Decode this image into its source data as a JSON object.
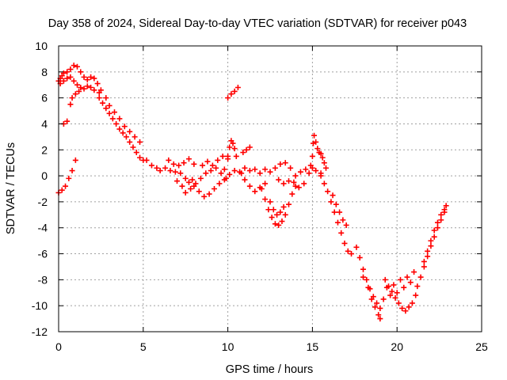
{
  "chart_data": {
    "type": "scatter",
    "title": "Day 358 of 2024, Sidereal Day-to-day VTEC variation (SDTVAR) for receiver p043",
    "xlabel": "GPS time / hours",
    "ylabel": "SDTVAR / TECUs",
    "xlim": [
      0,
      25
    ],
    "ylim": [
      -12,
      10
    ],
    "xticks": [
      "0",
      "5",
      "10",
      "15",
      "20",
      "25"
    ],
    "yticks": [
      "-12",
      "-10",
      "-8",
      "-6",
      "-4",
      "-2",
      "0",
      "2",
      "4",
      "6",
      "8",
      "10"
    ],
    "grid": true,
    "marker": "plus",
    "series_color": "#ff0000",
    "series": [
      {
        "points": [
          [
            0.0,
            -1.3
          ],
          [
            0.2,
            -1.1
          ],
          [
            0.4,
            -0.8
          ],
          [
            0.6,
            -0.2
          ],
          [
            0.8,
            0.4
          ],
          [
            1.0,
            1.2
          ],
          [
            0.3,
            4.0
          ],
          [
            0.5,
            4.2
          ],
          [
            0.7,
            5.5
          ],
          [
            0.8,
            6.0
          ],
          [
            1.0,
            6.3
          ],
          [
            1.2,
            6.5
          ],
          [
            0.0,
            7.3
          ],
          [
            0.1,
            7.5
          ],
          [
            0.2,
            7.7
          ],
          [
            0.3,
            7.9
          ],
          [
            0.5,
            8.0
          ],
          [
            0.7,
            8.2
          ],
          [
            0.9,
            8.5
          ],
          [
            1.1,
            8.4
          ],
          [
            1.3,
            8.0
          ],
          [
            1.5,
            7.6
          ],
          [
            1.7,
            7.4
          ],
          [
            1.9,
            7.6
          ],
          [
            2.1,
            7.5
          ],
          [
            2.3,
            7.1
          ],
          [
            0.1,
            7.1
          ],
          [
            0.3,
            7.3
          ],
          [
            0.5,
            7.5
          ],
          [
            0.7,
            7.6
          ],
          [
            0.9,
            7.3
          ],
          [
            1.1,
            7.0
          ],
          [
            1.3,
            6.8
          ],
          [
            1.5,
            6.7
          ],
          [
            1.7,
            6.9
          ],
          [
            1.9,
            6.8
          ],
          [
            2.1,
            6.6
          ],
          [
            2.4,
            6.4
          ],
          [
            2.4,
            6.0
          ],
          [
            2.6,
            5.6
          ],
          [
            2.8,
            5.2
          ],
          [
            3.0,
            4.8
          ],
          [
            3.2,
            4.4
          ],
          [
            3.4,
            4.0
          ],
          [
            3.6,
            3.6
          ],
          [
            3.8,
            3.3
          ],
          [
            4.0,
            3.0
          ],
          [
            4.2,
            2.6
          ],
          [
            4.4,
            2.2
          ],
          [
            4.6,
            1.8
          ],
          [
            4.8,
            1.4
          ],
          [
            5.0,
            1.2
          ],
          [
            2.5,
            6.6
          ],
          [
            2.8,
            6.0
          ],
          [
            3.0,
            5.4
          ],
          [
            3.3,
            4.9
          ],
          [
            3.6,
            4.4
          ],
          [
            3.9,
            3.8
          ],
          [
            4.2,
            3.4
          ],
          [
            4.5,
            3.0
          ],
          [
            4.8,
            2.6
          ],
          [
            5.2,
            1.2
          ],
          [
            5.5,
            0.8
          ],
          [
            5.8,
            0.6
          ],
          [
            6.0,
            0.4
          ],
          [
            6.3,
            0.6
          ],
          [
            6.6,
            0.4
          ],
          [
            6.9,
            0.3
          ],
          [
            7.2,
            0.2
          ],
          [
            7.5,
            -0.2
          ],
          [
            7.7,
            -0.5
          ],
          [
            7.9,
            -0.3
          ],
          [
            6.5,
            1.2
          ],
          [
            6.8,
            0.9
          ],
          [
            7.1,
            0.8
          ],
          [
            7.4,
            1.0
          ],
          [
            7.7,
            1.3
          ],
          [
            8.0,
            0.9
          ],
          [
            7.0,
            -0.4
          ],
          [
            7.3,
            -0.8
          ],
          [
            7.5,
            -1.3
          ],
          [
            7.8,
            -1.0
          ],
          [
            8.1,
            -0.6
          ],
          [
            8.4,
            -0.2
          ],
          [
            8.7,
            0.2
          ],
          [
            9.0,
            0.4
          ],
          [
            9.3,
            0.6
          ],
          [
            9.6,
            0.2
          ],
          [
            9.9,
            -0.2
          ],
          [
            8.0,
            -0.8
          ],
          [
            8.3,
            -1.2
          ],
          [
            8.6,
            -1.6
          ],
          [
            8.9,
            -1.4
          ],
          [
            9.2,
            -1.0
          ],
          [
            9.5,
            -0.6
          ],
          [
            9.8,
            -0.3
          ],
          [
            10.1,
            0.1
          ],
          [
            10.4,
            0.4
          ],
          [
            10.7,
            0.3
          ],
          [
            8.5,
            0.8
          ],
          [
            8.8,
            1.1
          ],
          [
            9.1,
            0.8
          ],
          [
            9.4,
            1.2
          ],
          [
            9.7,
            1.5
          ],
          [
            10.0,
            1.3
          ],
          [
            9.8,
            0.5
          ],
          [
            10.0,
            1.5
          ],
          [
            10.1,
            2.2
          ],
          [
            10.2,
            2.7
          ],
          [
            10.3,
            2.5
          ],
          [
            10.4,
            2.1
          ],
          [
            10.5,
            1.5
          ],
          [
            10.9,
            1.8
          ],
          [
            11.1,
            2.0
          ],
          [
            11.3,
            2.2
          ],
          [
            10.0,
            6.0
          ],
          [
            10.2,
            6.3
          ],
          [
            10.4,
            6.5
          ],
          [
            10.6,
            6.8
          ],
          [
            10.8,
            0.2
          ],
          [
            11.0,
            -0.3
          ],
          [
            11.3,
            -0.8
          ],
          [
            11.6,
            -1.2
          ],
          [
            11.9,
            -0.9
          ],
          [
            12.2,
            -0.6
          ],
          [
            11.0,
            0.6
          ],
          [
            11.3,
            0.4
          ],
          [
            11.6,
            0.5
          ],
          [
            11.9,
            0.2
          ],
          [
            12.2,
            0.5
          ],
          [
            12.5,
            0.3
          ],
          [
            12.8,
            0.6
          ],
          [
            13.1,
            0.9
          ],
          [
            13.4,
            1.0
          ],
          [
            13.7,
            0.6
          ],
          [
            12.0,
            -1.0
          ],
          [
            12.2,
            -1.8
          ],
          [
            12.4,
            -2.6
          ],
          [
            12.6,
            -3.2
          ],
          [
            12.8,
            -3.7
          ],
          [
            13.0,
            -3.8
          ],
          [
            13.2,
            -3.5
          ],
          [
            13.4,
            -3.0
          ],
          [
            13.6,
            -2.2
          ],
          [
            13.8,
            -1.4
          ],
          [
            14.0,
            -0.8
          ],
          [
            12.5,
            -2.0
          ],
          [
            12.7,
            -2.6
          ],
          [
            12.9,
            -3.0
          ],
          [
            13.1,
            -2.8
          ],
          [
            13.3,
            -2.4
          ],
          [
            13.0,
            -0.3
          ],
          [
            13.3,
            -0.6
          ],
          [
            13.6,
            -0.4
          ],
          [
            13.9,
            -0.5
          ],
          [
            14.2,
            -0.9
          ],
          [
            14.5,
            -0.6
          ],
          [
            14.8,
            0.2
          ],
          [
            15.0,
            0.6
          ],
          [
            14.0,
            0.0
          ],
          [
            14.3,
            0.3
          ],
          [
            14.6,
            0.5
          ],
          [
            14.9,
            0.8
          ],
          [
            15.2,
            0.4
          ],
          [
            15.5,
            0.2
          ],
          [
            15.0,
            1.5
          ],
          [
            15.05,
            2.5
          ],
          [
            15.1,
            3.1
          ],
          [
            15.2,
            2.6
          ],
          [
            15.3,
            2.1
          ],
          [
            15.4,
            1.8
          ],
          [
            15.5,
            1.7
          ],
          [
            15.6,
            1.4
          ],
          [
            15.7,
            1.0
          ],
          [
            15.8,
            0.6
          ],
          [
            15.5,
            0.0
          ],
          [
            15.7,
            -0.6
          ],
          [
            15.9,
            -1.2
          ],
          [
            16.1,
            -2.0
          ],
          [
            16.3,
            -2.8
          ],
          [
            16.5,
            -3.6
          ],
          [
            16.7,
            -4.4
          ],
          [
            16.9,
            -5.2
          ],
          [
            17.1,
            -5.8
          ],
          [
            17.3,
            -6.0
          ],
          [
            16.2,
            -1.5
          ],
          [
            16.4,
            -2.2
          ],
          [
            16.6,
            -2.8
          ],
          [
            16.8,
            -3.4
          ],
          [
            17.0,
            -3.8
          ],
          [
            17.6,
            -5.5
          ],
          [
            17.8,
            -6.3
          ],
          [
            18.0,
            -7.2
          ],
          [
            18.2,
            -8.0
          ],
          [
            18.4,
            -8.7
          ],
          [
            18.6,
            -9.3
          ],
          [
            18.8,
            -9.8
          ],
          [
            19.0,
            -10.2
          ],
          [
            18.0,
            -7.8
          ],
          [
            18.3,
            -8.6
          ],
          [
            18.5,
            -9.5
          ],
          [
            18.7,
            -10.1
          ],
          [
            18.9,
            -10.7
          ],
          [
            19.0,
            -11.0
          ],
          [
            19.2,
            -9.5
          ],
          [
            19.4,
            -8.6
          ],
          [
            19.6,
            -9.2
          ],
          [
            19.8,
            -8.4
          ],
          [
            20.0,
            -9.0
          ],
          [
            20.2,
            -8.0
          ],
          [
            20.4,
            -8.6
          ],
          [
            20.6,
            -7.8
          ],
          [
            20.8,
            -8.2
          ],
          [
            21.0,
            -7.4
          ],
          [
            19.3,
            -8.0
          ],
          [
            19.5,
            -8.5
          ],
          [
            19.7,
            -8.9
          ],
          [
            19.9,
            -9.4
          ],
          [
            20.1,
            -9.8
          ],
          [
            20.3,
            -10.2
          ],
          [
            20.5,
            -10.4
          ],
          [
            20.7,
            -10.1
          ],
          [
            20.9,
            -9.8
          ],
          [
            21.1,
            -9.2
          ],
          [
            21.2,
            -8.5
          ],
          [
            21.4,
            -7.8
          ],
          [
            21.6,
            -7.0
          ],
          [
            21.8,
            -6.2
          ],
          [
            22.0,
            -5.4
          ],
          [
            22.2,
            -4.7
          ],
          [
            22.4,
            -4.0
          ],
          [
            22.6,
            -3.4
          ],
          [
            22.8,
            -2.8
          ],
          [
            22.9,
            -2.3
          ],
          [
            21.6,
            -6.6
          ],
          [
            21.8,
            -5.8
          ],
          [
            22.0,
            -5.0
          ],
          [
            22.2,
            -4.2
          ],
          [
            22.4,
            -3.6
          ],
          [
            22.6,
            -3.0
          ],
          [
            22.8,
            -2.6
          ]
        ]
      }
    ]
  }
}
